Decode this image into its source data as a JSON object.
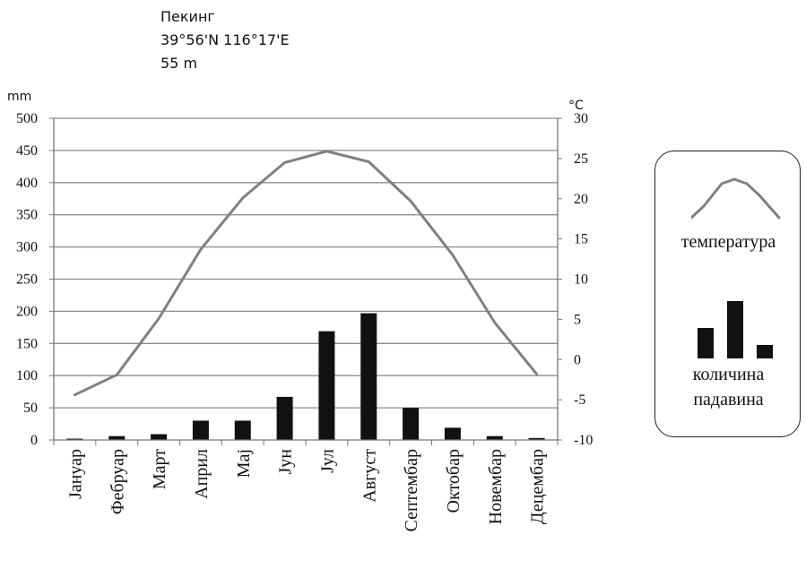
{
  "header": {
    "city": "Пекинг",
    "coordinates": "39°56'N 116°17'E",
    "elevation": "55 m"
  },
  "chart_data": {
    "type": "bar+line",
    "categories": [
      "Јануар",
      "Фебруар",
      "Март",
      "Април",
      "Мај",
      "Јун",
      "Јул",
      "Август",
      "Септембар",
      "Октобар",
      "Новембар",
      "Децембар"
    ],
    "series": [
      {
        "name": "количина падавина",
        "type": "bar",
        "axis": "left",
        "values": [
          2,
          6,
          9,
          30,
          30,
          67,
          169,
          197,
          50,
          19,
          6,
          3
        ]
      },
      {
        "name": "температура",
        "type": "line",
        "axis": "right",
        "values": [
          -4.4,
          -1.9,
          5.1,
          13.7,
          20.1,
          24.5,
          25.9,
          24.6,
          19.7,
          13.0,
          4.6,
          -1.8
        ]
      }
    ],
    "y_left": {
      "label": "mm",
      "min": 0,
      "max": 500,
      "step": 50
    },
    "y_right": {
      "label": "°C",
      "min": -10,
      "max": 30,
      "step": 5
    },
    "grid": true,
    "colors": {
      "bars": "#111111",
      "line": "#808080",
      "grid": "#8c8c8c"
    }
  },
  "legend": {
    "temperature_label": "температура",
    "precipitation_label_line1": "количина",
    "precipitation_label_line2": "падавина"
  }
}
